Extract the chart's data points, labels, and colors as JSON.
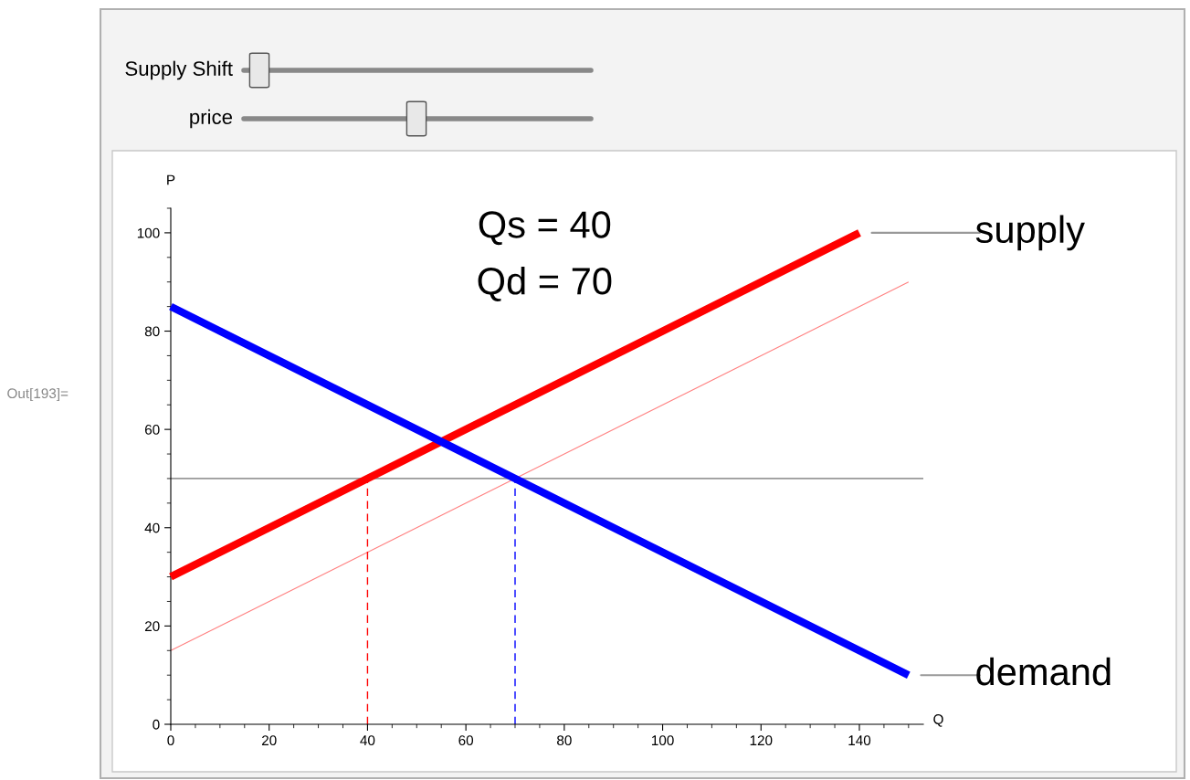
{
  "chart_data": {
    "type": "line",
    "xlabel": "Q",
    "ylabel": "P",
    "xlim": [
      0,
      153
    ],
    "ylim": [
      0,
      105
    ],
    "xticks": [
      0,
      20,
      40,
      60,
      80,
      100,
      120,
      140
    ],
    "yticks": [
      0,
      20,
      40,
      60,
      80,
      100
    ],
    "series": [
      {
        "name": "supply",
        "color": "#ff0000",
        "x": [
          0,
          140
        ],
        "values": [
          30,
          100
        ]
      },
      {
        "color": "#ff8080",
        "x": [
          0,
          150
        ],
        "values": [
          15,
          90
        ]
      },
      {
        "name": "demand",
        "color": "#0000ff",
        "x": [
          0,
          150
        ],
        "values": [
          85,
          10
        ]
      },
      {
        "color": "#ff0000",
        "x": [
          40,
          40
        ],
        "values": [
          0,
          50
        ],
        "line_style": "dashed"
      },
      {
        "color": "#0000ff",
        "x": [
          70,
          70
        ],
        "values": [
          0,
          50
        ],
        "line_style": "dashed"
      }
    ],
    "ref_lines": [
      {
        "axis": "y",
        "value": 50,
        "color": "#999999"
      }
    ],
    "annotations": [
      "Qs = 40",
      "Qd = 70",
      "Supply Shift",
      "price",
      "Out[193]="
    ]
  }
}
